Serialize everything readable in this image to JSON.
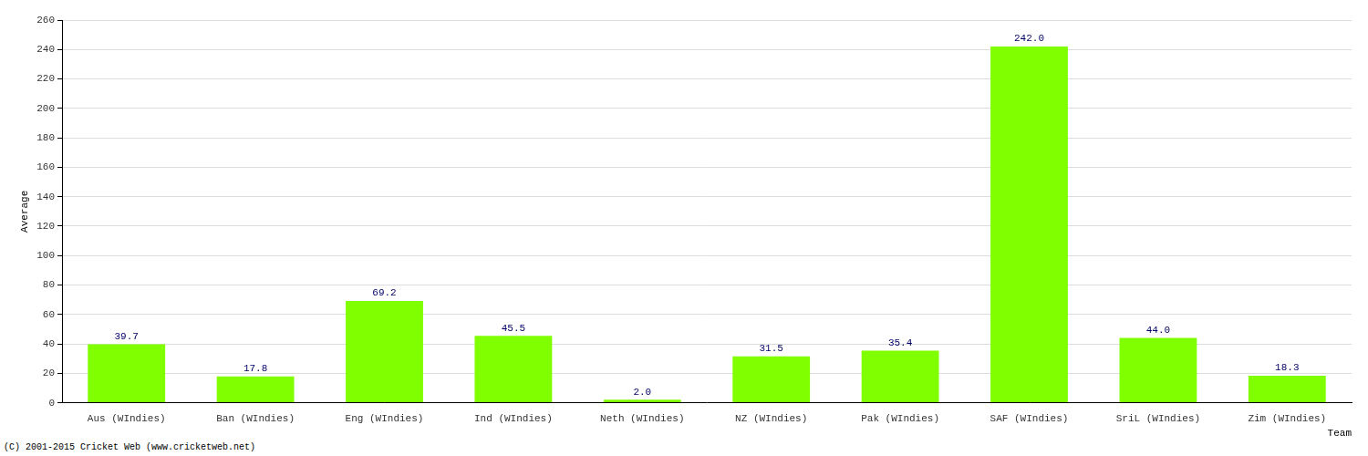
{
  "chart_data": {
    "type": "bar",
    "categories": [
      "Aus (WIndies)",
      "Ban (WIndies)",
      "Eng (WIndies)",
      "Ind (WIndies)",
      "Neth (WIndies)",
      "NZ (WIndies)",
      "Pak (WIndies)",
      "SAF (WIndies)",
      "SriL (WIndies)",
      "Zim (WIndies)"
    ],
    "values": [
      39.7,
      17.8,
      69.2,
      45.5,
      2.0,
      31.5,
      35.4,
      242.0,
      44.0,
      18.3
    ],
    "value_labels": [
      "39.7",
      "17.8",
      "69.2",
      "45.5",
      "2.0",
      "31.5",
      "35.4",
      "242.0",
      "44.0",
      "18.3"
    ],
    "color": "#7fff00",
    "x_label": "Team",
    "y_label": "Average",
    "ylim": [
      0,
      260
    ],
    "yticks": [
      0,
      20,
      40,
      60,
      80,
      100,
      120,
      140,
      160,
      180,
      200,
      220,
      240,
      260
    ],
    "grid": true,
    "data_labels": true,
    "annotations": [
      "(C) 2001-2015 Cricket Web (www.cricketweb.net)"
    ]
  }
}
